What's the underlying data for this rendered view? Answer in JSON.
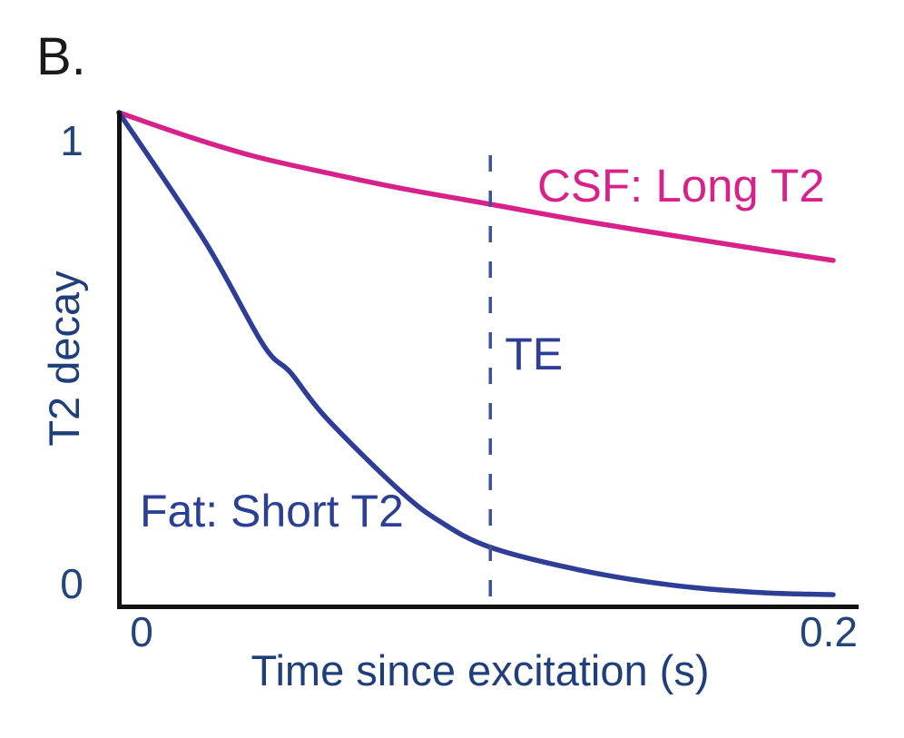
{
  "panel_label": "B.",
  "colors": {
    "fat": "#2e3d96",
    "csf": "#d6228a",
    "te_line": "#3d5394",
    "tick_text": "#22457a",
    "axis_label_text": "#1f3f7a",
    "fat_label_text": "#2b3f94",
    "axis": "#111111"
  },
  "chart_data": {
    "type": "line",
    "title": "",
    "xlabel": "Time since excitation (s)",
    "ylabel": "T2 decay",
    "xlim": [
      0,
      0.2
    ],
    "ylim": [
      0,
      1
    ],
    "grid": false,
    "x_ticks": [
      {
        "value": 0,
        "label": "0"
      },
      {
        "value": 0.2,
        "label": "0.2"
      }
    ],
    "y_ticks": [
      {
        "value": 0,
        "label": "0"
      },
      {
        "value": 1,
        "label": "1"
      }
    ],
    "series": [
      {
        "name": "CSF: Long T2",
        "color_key": "csf",
        "x": [
          0,
          0.02,
          0.0386,
          0.06,
          0.08,
          0.104,
          0.13,
          0.16,
          0.18,
          0.2
        ],
        "y": [
          1.0,
          0.95,
          0.91,
          0.875,
          0.845,
          0.814,
          0.78,
          0.745,
          0.722,
          0.7
        ]
      },
      {
        "name": "Fat: Short T2",
        "color_key": "fat",
        "x": [
          0,
          0.024,
          0.0404,
          0.048,
          0.058,
          0.0785,
          0.09,
          0.104,
          0.129,
          0.155,
          0.18,
          0.2
        ],
        "y": [
          1.0,
          0.74,
          0.529,
          0.473,
          0.381,
          0.234,
          0.17,
          0.118,
          0.072,
          0.041,
          0.026,
          0.022
        ]
      }
    ],
    "annotations": [
      {
        "type": "vline",
        "name": "TE",
        "x": 0.104,
        "style": "dashed",
        "label": "TE"
      },
      {
        "type": "text",
        "text": "CSF: Long T2",
        "series": "CSF: Long T2"
      },
      {
        "type": "text",
        "text": "Fat: Short T2",
        "series": "Fat: Short T2"
      }
    ]
  }
}
